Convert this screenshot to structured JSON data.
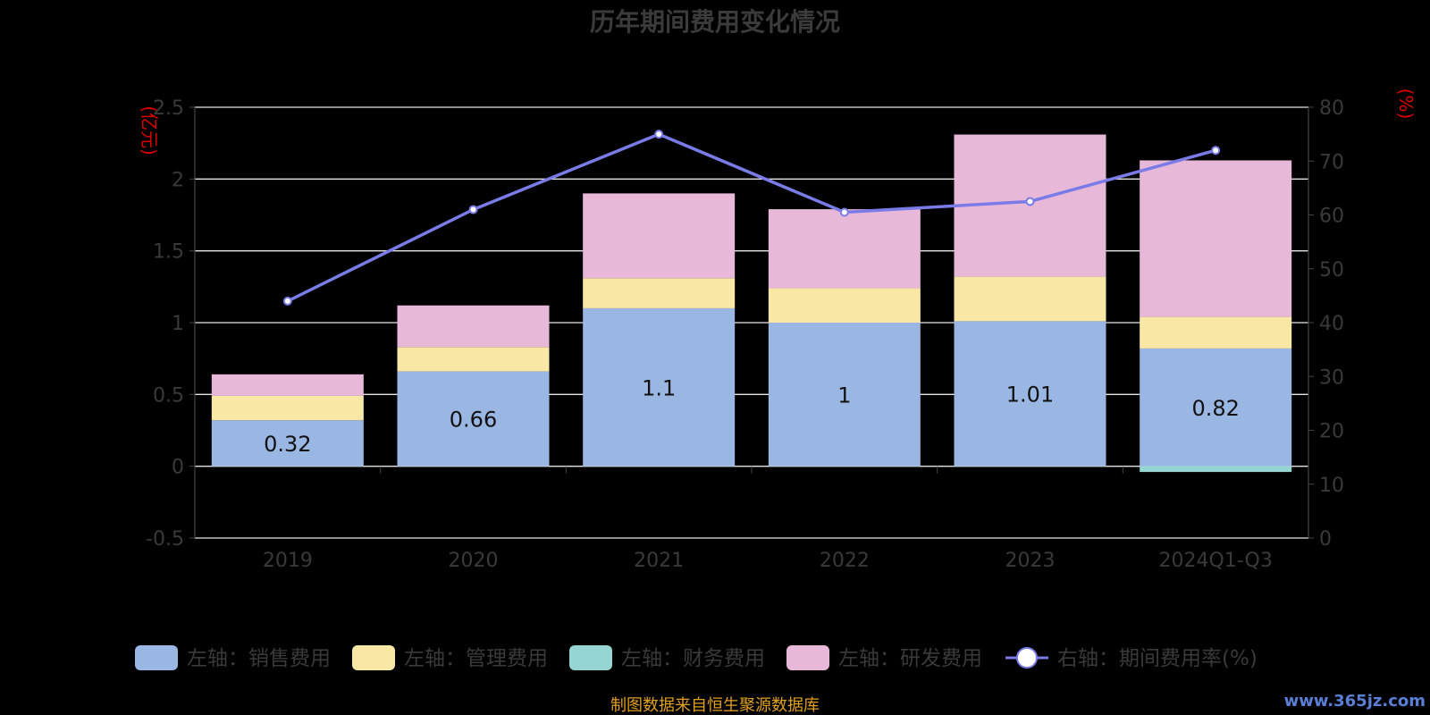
{
  "chart_data": {
    "type": "bar",
    "title": "历年期间费用变化情况",
    "categories": [
      "2019",
      "2020",
      "2021",
      "2022",
      "2023",
      "2024Q1-Q3"
    ],
    "left_axis": {
      "unit": "(亿元)",
      "range": [
        -0.5,
        2.5
      ],
      "ticks": [
        "2.5",
        "2",
        "1.5",
        "1",
        "0.5",
        "0",
        "-0.5"
      ],
      "tick_values": [
        2.5,
        2,
        1.5,
        1,
        0.5,
        0,
        -0.5
      ]
    },
    "right_axis": {
      "unit": "(%)",
      "range": [
        0,
        80
      ],
      "ticks": [
        "80",
        "70",
        "60",
        "50",
        "40",
        "30",
        "20",
        "10",
        "0"
      ],
      "tick_values": [
        80,
        70,
        60,
        50,
        40,
        30,
        20,
        10,
        0
      ]
    },
    "stacked": true,
    "series": [
      {
        "name": "左轴：销售费用",
        "color": "#9ab7e3",
        "values": [
          0.32,
          0.66,
          1.1,
          1.0,
          1.01,
          0.82
        ],
        "labels": [
          "0.32",
          "0.66",
          "1.1",
          "1",
          "1.01",
          "0.82"
        ]
      },
      {
        "name": "左轴：管理费用",
        "color": "#f9e8a5",
        "values": [
          0.17,
          0.17,
          0.21,
          0.24,
          0.31,
          0.22
        ]
      },
      {
        "name": "左轴：财务费用",
        "color": "#96d6d2",
        "values": [
          0.0,
          0.0,
          0.0,
          0.0,
          0.0,
          -0.04
        ]
      },
      {
        "name": "左轴：研发费用",
        "color": "#e8b8d8",
        "values": [
          0.15,
          0.29,
          0.59,
          0.55,
          0.99,
          1.09
        ]
      }
    ],
    "line_series": {
      "name": "右轴：期间费用率(%)",
      "color": "#7b7be8",
      "values": [
        44,
        61,
        75,
        60.5,
        62.5,
        72
      ]
    },
    "grid": true,
    "legend_position": "bottom"
  },
  "footer": {
    "source": "制图数据来自恒生聚源数据库",
    "watermark": "www.365jz.com"
  }
}
